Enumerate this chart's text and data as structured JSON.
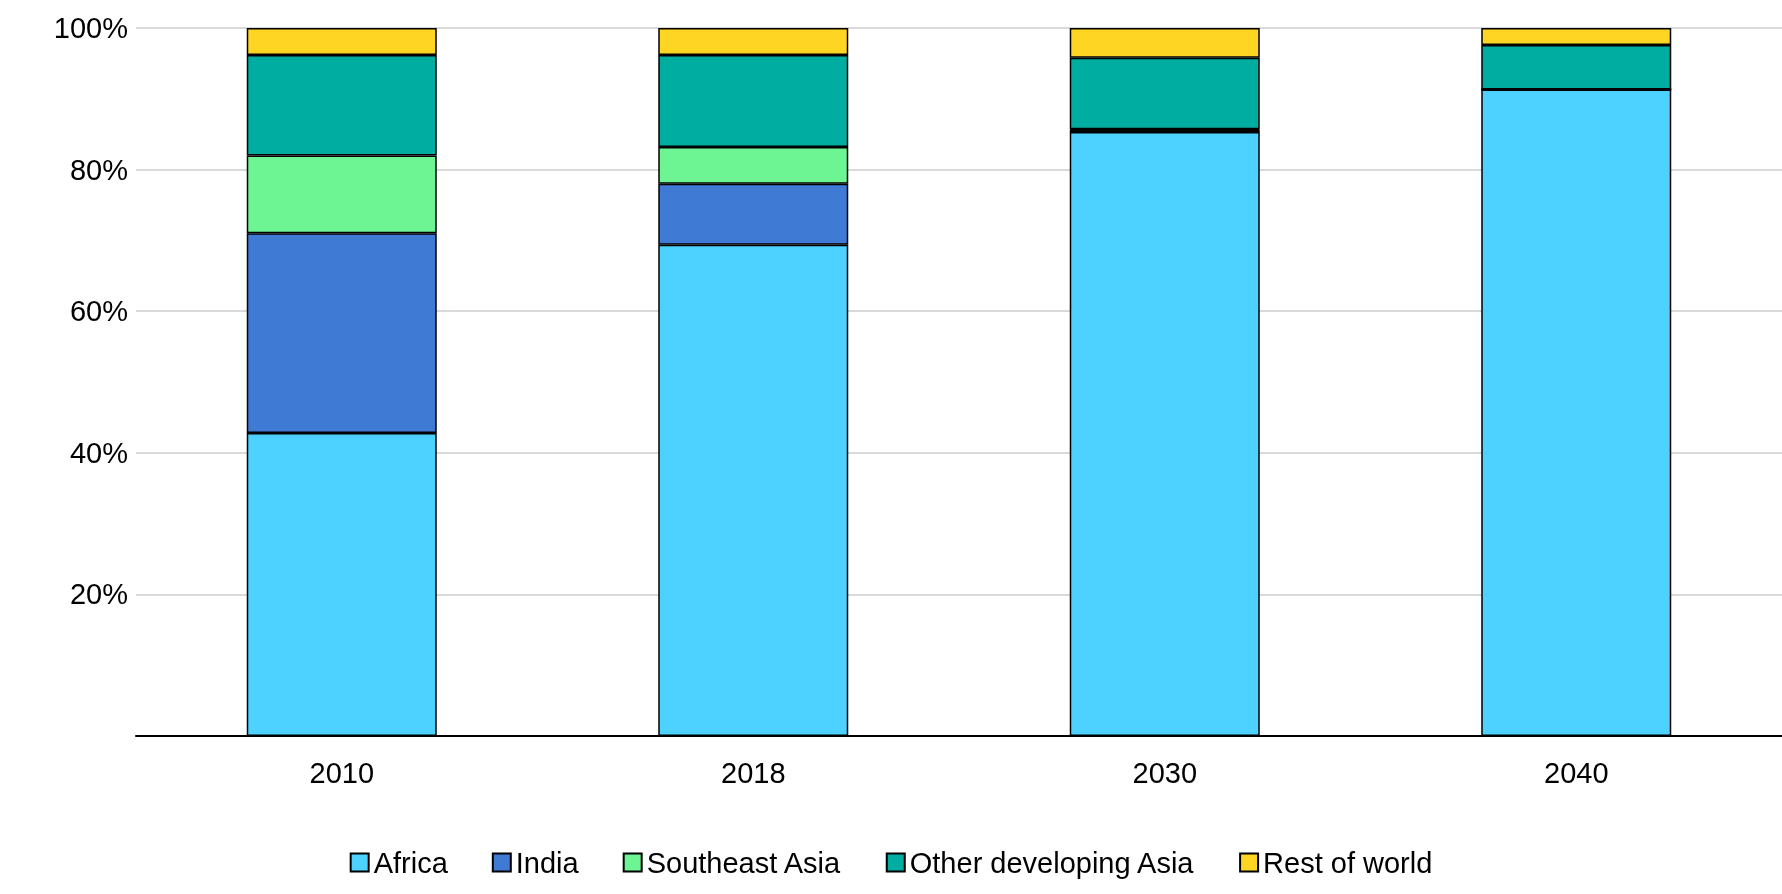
{
  "chart_data": {
    "type": "bar",
    "stacked": true,
    "categories": [
      "2010",
      "2018",
      "2030",
      "2040"
    ],
    "series": [
      {
        "name": "Africa",
        "color": "#4dd2ff",
        "values": [
          42.8,
          69.4,
          85.3,
          91.3
        ]
      },
      {
        "name": "India",
        "color": "#3f7ad4",
        "values": [
          28.2,
          8.6,
          0.3,
          0
        ]
      },
      {
        "name": "Southeast Asia",
        "color": "#6cf592",
        "values": [
          11,
          5.2,
          0.1,
          0
        ]
      },
      {
        "name": "Other developing Asia",
        "color": "#00ada1",
        "values": [
          14.2,
          13,
          10.1,
          6.3
        ]
      },
      {
        "name": "Rest of world",
        "color": "#ffd523",
        "values": [
          3.8,
          3.8,
          4.2,
          2.4
        ]
      }
    ],
    "ylim": [
      0,
      100
    ],
    "yticks": [
      {
        "value": 0,
        "label": null
      },
      {
        "value": 20,
        "label": "20%"
      },
      {
        "value": 40,
        "label": "40%"
      },
      {
        "value": 60,
        "label": "60%"
      },
      {
        "value": 80,
        "label": "80%"
      },
      {
        "value": 100,
        "label": "100%"
      }
    ],
    "grid": "y",
    "legend": "bottom"
  }
}
